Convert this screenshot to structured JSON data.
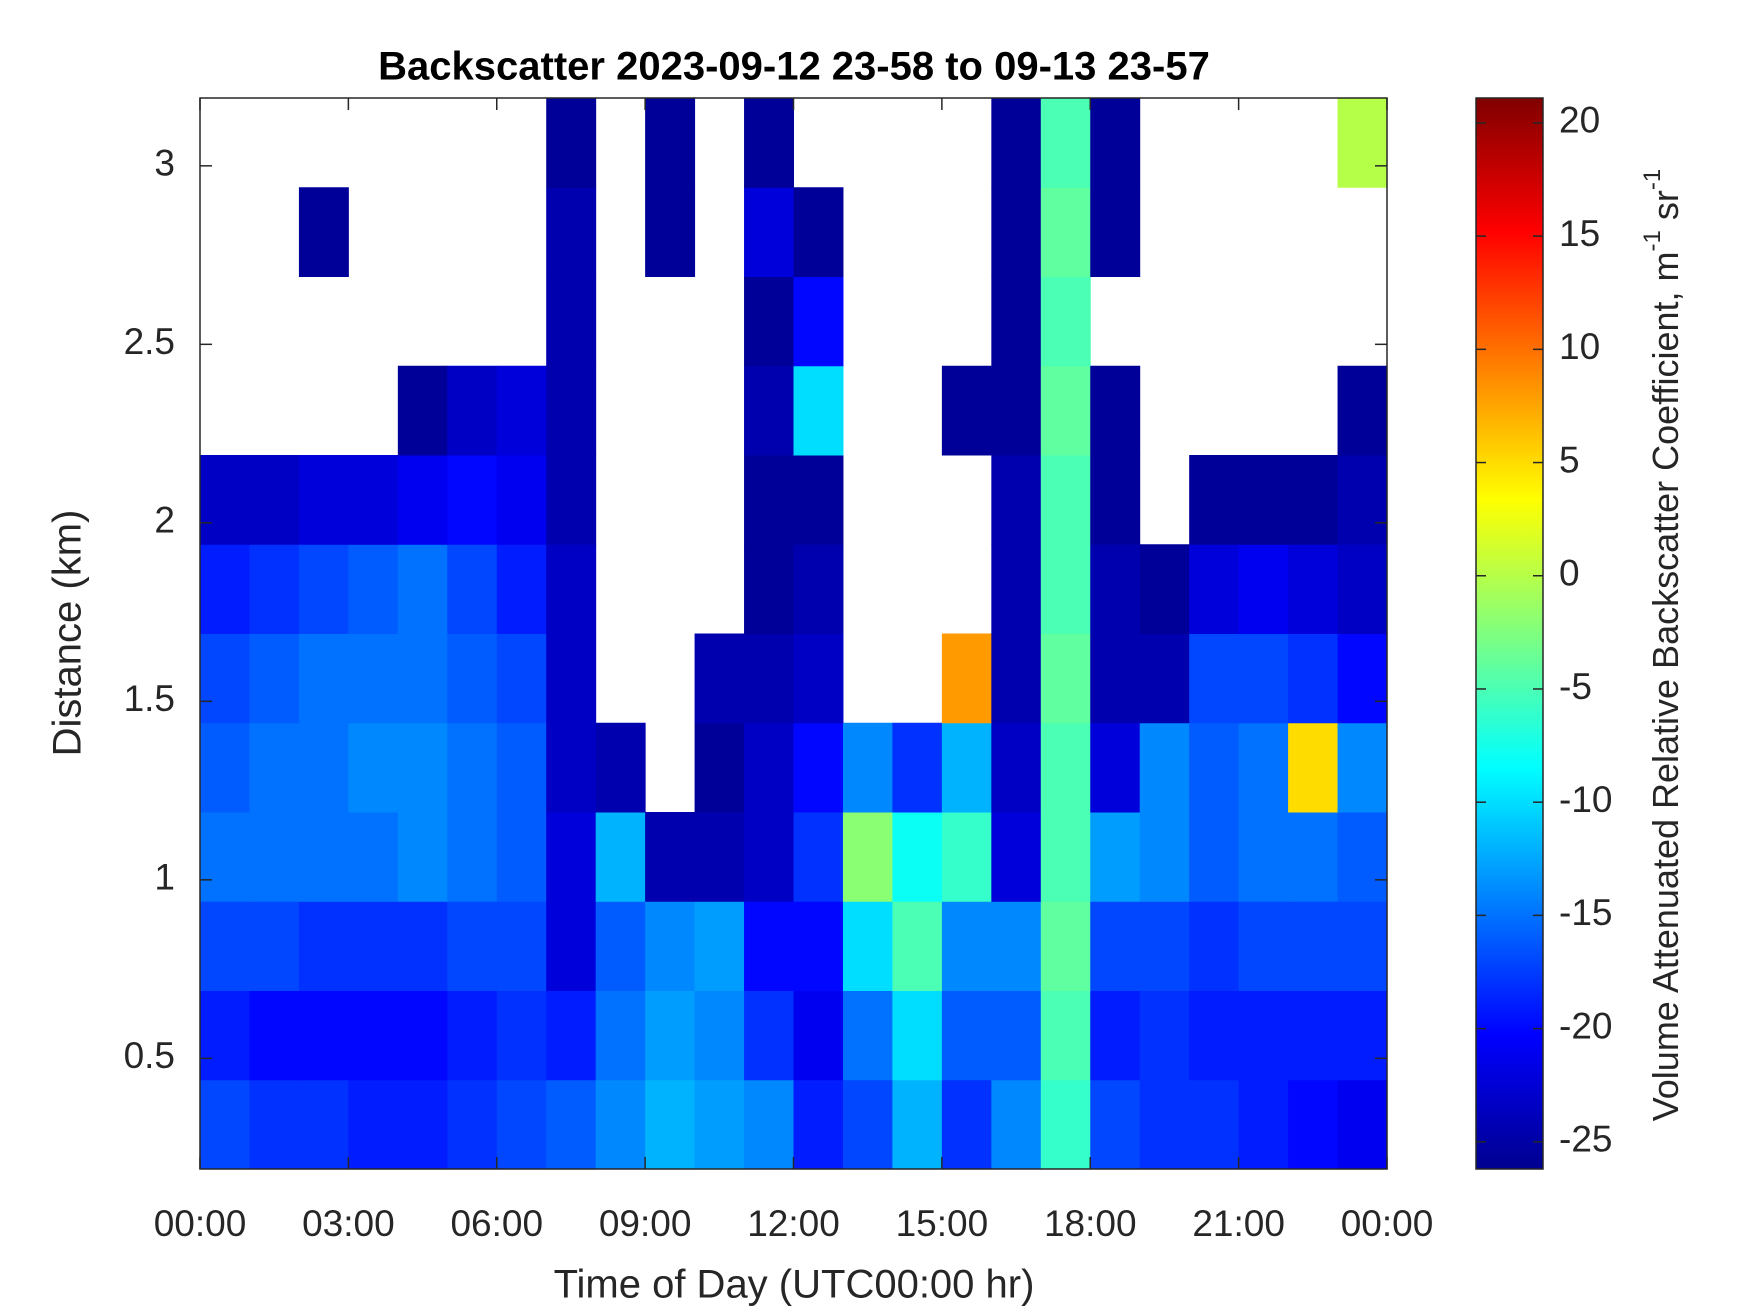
{
  "chart_data": {
    "type": "heatmap",
    "title": "Backscatter 2023-09-12 23-58 to 09-13 23-57",
    "x_label": "Time of Day (UTC00:00 hr)",
    "y_label": "Distance (km)",
    "colorbar_label": {
      "text": "Volume Attenuated Relative Backscatter Coefficient, m",
      "sup1": "-1",
      "mid": " sr",
      "sup2": "-1"
    },
    "colormap": "jet",
    "xlim": [
      0,
      24
    ],
    "xticks": [
      {
        "value": 0,
        "label": "00:00"
      },
      {
        "value": 3,
        "label": "03:00"
      },
      {
        "value": 6,
        "label": "06:00"
      },
      {
        "value": 9,
        "label": "09:00"
      },
      {
        "value": 12,
        "label": "12:00"
      },
      {
        "value": 15,
        "label": "15:00"
      },
      {
        "value": 18,
        "label": "18:00"
      },
      {
        "value": 21,
        "label": "21:00"
      },
      {
        "value": 24,
        "label": "00:00"
      }
    ],
    "ylim": [
      0.19,
      3.19
    ],
    "yticks": [
      0.5,
      1,
      1.5,
      2,
      2.5,
      3
    ],
    "clim": [
      -26.2,
      21.1
    ],
    "cticks": [
      -25,
      -20,
      -15,
      -10,
      -5,
      0,
      5,
      10,
      15,
      20
    ],
    "x": [
      0.5,
      1.5,
      2.5,
      3.5,
      4.5,
      5.5,
      6.5,
      7.5,
      8.5,
      9.5,
      10.5,
      11.5,
      12.5,
      13.5,
      14.5,
      15.5,
      16.5,
      17.5,
      18.5,
      19.5,
      20.5,
      21.5,
      22.5,
      23.5
    ],
    "y": [
      0.315,
      0.565,
      0.815,
      1.065,
      1.315,
      1.565,
      1.815,
      2.065,
      2.315,
      2.565,
      2.815,
      3.065
    ],
    "z": [
      [
        -17,
        -18,
        -18,
        -19,
        -19,
        -18,
        -17,
        -16,
        -14,
        -12,
        -13,
        -14,
        -19,
        -17,
        -12,
        -18,
        -14,
        -6,
        -17,
        -18,
        -18,
        -19,
        -20,
        -21
      ],
      [
        -19,
        -20,
        -20,
        -20,
        -20,
        -19,
        -18,
        -19,
        -15,
        -13,
        -14,
        -18,
        -21,
        -15,
        -10,
        -16,
        -16,
        -5,
        -19,
        -18,
        -19,
        -19,
        -19,
        -19
      ],
      [
        -17,
        -17,
        -18,
        -18,
        -18,
        -17,
        -17,
        -22,
        -16,
        -14,
        -13,
        -20,
        -20,
        -10,
        -5,
        -14,
        -14,
        -4,
        -17,
        -17,
        -18,
        -17,
        -17,
        -17
      ],
      [
        -15,
        -15,
        -15,
        -15,
        -14,
        -15,
        -16,
        -22,
        -12,
        -24,
        -24,
        -23,
        -18,
        -2,
        -8,
        -6,
        -22,
        -5,
        -13,
        -14,
        -16,
        -15,
        -15,
        -16
      ],
      [
        -16,
        -15,
        -15,
        -14,
        -14,
        -15,
        -16,
        -23,
        -24,
        null,
        -25,
        -23,
        -20,
        -14,
        -18,
        -12,
        -23,
        -5,
        -22,
        -14,
        -16,
        -15,
        5,
        -14
      ],
      [
        -17,
        -16,
        -15,
        -15,
        -15,
        -16,
        -17,
        -23,
        null,
        null,
        -24,
        -24,
        -23,
        null,
        null,
        8,
        -24,
        -4,
        -24,
        -24,
        -17,
        -17,
        -18,
        -20
      ],
      [
        -19,
        -18,
        -17,
        -16,
        -15,
        -17,
        -19,
        -23,
        null,
        null,
        null,
        -25,
        -24,
        null,
        null,
        null,
        -24,
        -5,
        -24,
        -25,
        -22,
        -21,
        -22,
        -23
      ],
      [
        -23,
        -23,
        -22,
        -22,
        -21,
        -20,
        -21,
        -24,
        null,
        null,
        null,
        -25,
        -25,
        null,
        null,
        null,
        -24,
        -5,
        -25,
        null,
        -25,
        -25,
        -25,
        -24
      ],
      [
        null,
        null,
        null,
        null,
        -25,
        -23,
        -22,
        -24,
        null,
        null,
        null,
        -24,
        -10,
        null,
        null,
        -25,
        -25,
        -4,
        -25,
        null,
        null,
        null,
        null,
        -25
      ],
      [
        null,
        null,
        null,
        null,
        null,
        null,
        null,
        -24,
        null,
        null,
        null,
        -25,
        -20,
        null,
        null,
        null,
        -25,
        -5,
        null,
        null,
        null,
        null,
        null,
        null
      ],
      [
        null,
        null,
        -25,
        null,
        null,
        null,
        null,
        -24,
        null,
        -25,
        null,
        -22,
        -25,
        null,
        null,
        null,
        -25,
        -4,
        -25,
        null,
        null,
        null,
        null,
        null
      ],
      [
        null,
        null,
        null,
        null,
        null,
        null,
        null,
        -25,
        null,
        -25,
        null,
        -25,
        null,
        null,
        null,
        null,
        -25,
        -5,
        -25,
        null,
        null,
        null,
        null,
        0
      ]
    ]
  }
}
